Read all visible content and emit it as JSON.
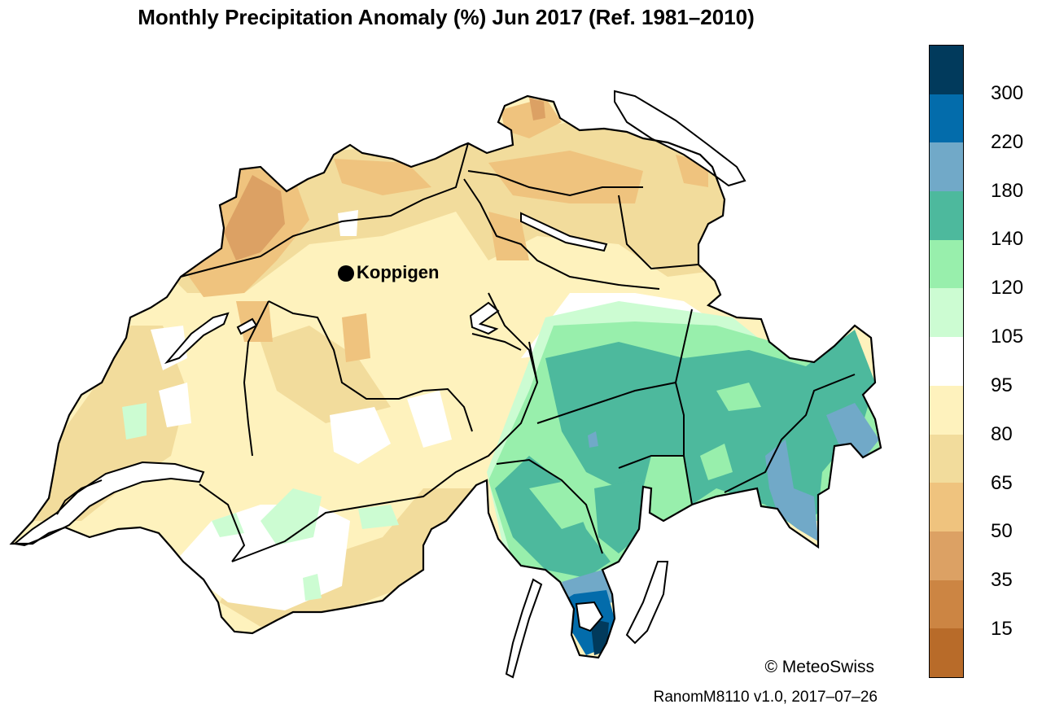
{
  "title": "Monthly Precipitation Anomaly (%) Jun 2017  (Ref. 1981–2010)",
  "map": {
    "region": "Switzerland",
    "variable": "Precipitation anomaly",
    "unit": "%",
    "marker": {
      "label": "Koppigen"
    }
  },
  "legend": {
    "bands": [
      {
        "color": "#013a5c"
      },
      {
        "color": "#036cab"
      },
      {
        "color": "#71a9c8"
      },
      {
        "color": "#4db99d"
      },
      {
        "color": "#98efac"
      },
      {
        "color": "#ccfcd2"
      },
      {
        "color": "#ffffff"
      },
      {
        "color": "#fef2bd"
      },
      {
        "color": "#f2dc9c"
      },
      {
        "color": "#efc37e"
      },
      {
        "color": "#dca164"
      },
      {
        "color": "#cc8543"
      },
      {
        "color": "#b86b29"
      }
    ],
    "ticks": [
      "300",
      "220",
      "180",
      "140",
      "120",
      "105",
      "95",
      "80",
      "65",
      "50",
      "35",
      "15"
    ]
  },
  "footer": {
    "copyright": "© MeteoSwiss",
    "version": "RanomM8110 v1.0, 2017–07–26"
  },
  "colors": {
    "outline": "#000000",
    "lake": "#ffffff"
  }
}
